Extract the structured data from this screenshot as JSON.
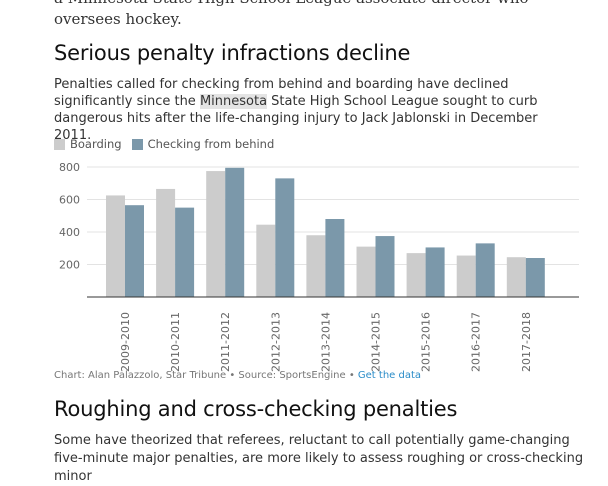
{
  "article": {
    "top_text": "a Minnesota State High School League associate director who oversees hockey.",
    "headline1": "Serious penalty infractions decline",
    "desc_part1": "Penalties called for checking from behind and boarding have declined significantly since the ",
    "desc_highlight": "Minnesota",
    "desc_part2": " State High School League sought to curb dangerous hits after the life-changing injury to Jack Jablonski in December 2011.",
    "credit_text": "Chart: Alan Palazzolo, Star Tribune • Source: SportsEngine • ",
    "credit_link": "Get the data",
    "headline2": "Roughing and cross-checking penalties",
    "bottom_text": "Some have theorized that referees, reluctant to call potentially game-changing five-minute major penalties, are more likely to assess roughing or cross-checking minor"
  },
  "chart_data": {
    "type": "bar",
    "categories": [
      "2009-2010",
      "2010-2011",
      "2011-2012",
      "2012-2013",
      "2013-2014",
      "2014-2015",
      "2015-2016",
      "2016-2017",
      "2017-2018"
    ],
    "series": [
      {
        "name": "Boarding",
        "color": "#cccccc",
        "values": [
          625,
          665,
          775,
          445,
          380,
          310,
          270,
          255,
          245
        ]
      },
      {
        "name": "Checking from behind",
        "color": "#7b98aa",
        "values": [
          565,
          550,
          795,
          730,
          480,
          375,
          305,
          330,
          240
        ]
      }
    ],
    "yticks": [
      200,
      400,
      600,
      800
    ],
    "ylim": [
      0,
      800
    ],
    "grid": true,
    "legend_position": "top-left",
    "title": "",
    "xlabel": "",
    "ylabel": ""
  }
}
